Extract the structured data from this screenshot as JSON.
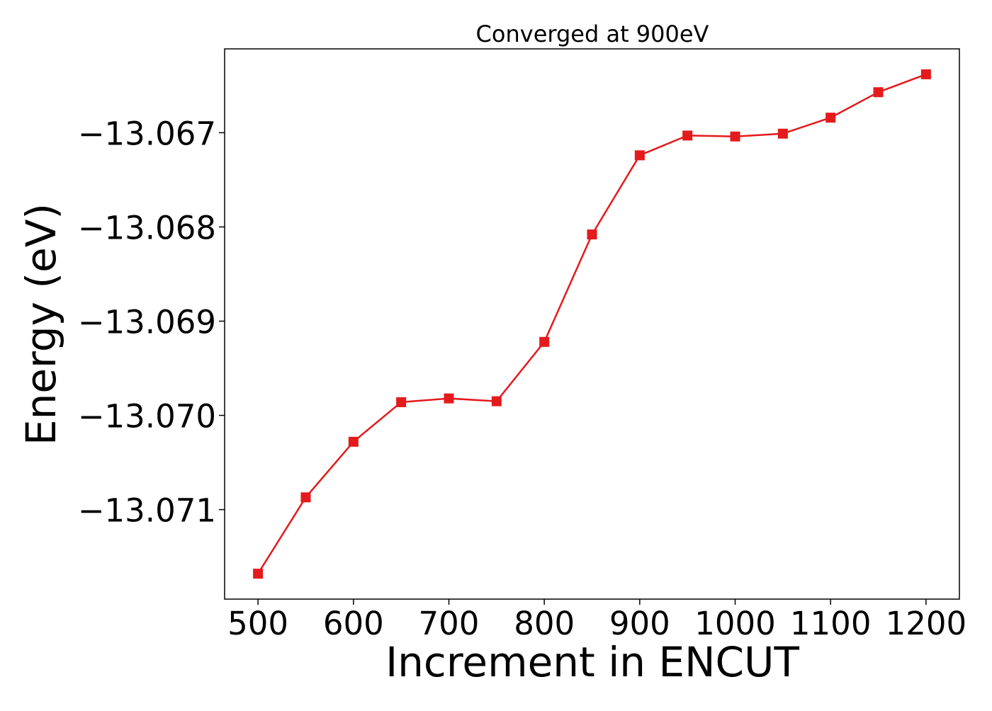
{
  "chart_data": {
    "type": "line",
    "title": "Converged at 900eV",
    "xlabel": "Increment in ENCUT",
    "ylabel": "Energy (eV)",
    "x": [
      500,
      550,
      600,
      650,
      700,
      750,
      800,
      850,
      900,
      950,
      1000,
      1050,
      1100,
      1150,
      1200
    ],
    "series": [
      {
        "name": "",
        "color": "#e41a1c",
        "marker": "square",
        "values": [
          -13.07168,
          -13.07087,
          -13.07028,
          -13.06986,
          -13.06982,
          -13.06985,
          -13.06922,
          -13.06808,
          -13.06724,
          -13.06703,
          -13.06704,
          -13.06701,
          -13.06684,
          -13.06657,
          -13.06638
        ]
      }
    ],
    "xticks": [
      500,
      600,
      700,
      800,
      900,
      1000,
      1100,
      1200
    ],
    "xtick_labels": [
      "500",
      "600",
      "700",
      "800",
      "900",
      "1000",
      "1100",
      "1200"
    ],
    "yticks": [
      -13.071,
      -13.07,
      -13.069,
      -13.068,
      -13.067
    ],
    "ytick_labels": [
      "−13.071",
      "−13.070",
      "−13.069",
      "−13.068",
      "−13.067"
    ],
    "xlim": [
      465,
      1235
    ],
    "ylim": [
      -13.07195,
      -13.06611
    ],
    "grid": false,
    "legend": "none"
  }
}
